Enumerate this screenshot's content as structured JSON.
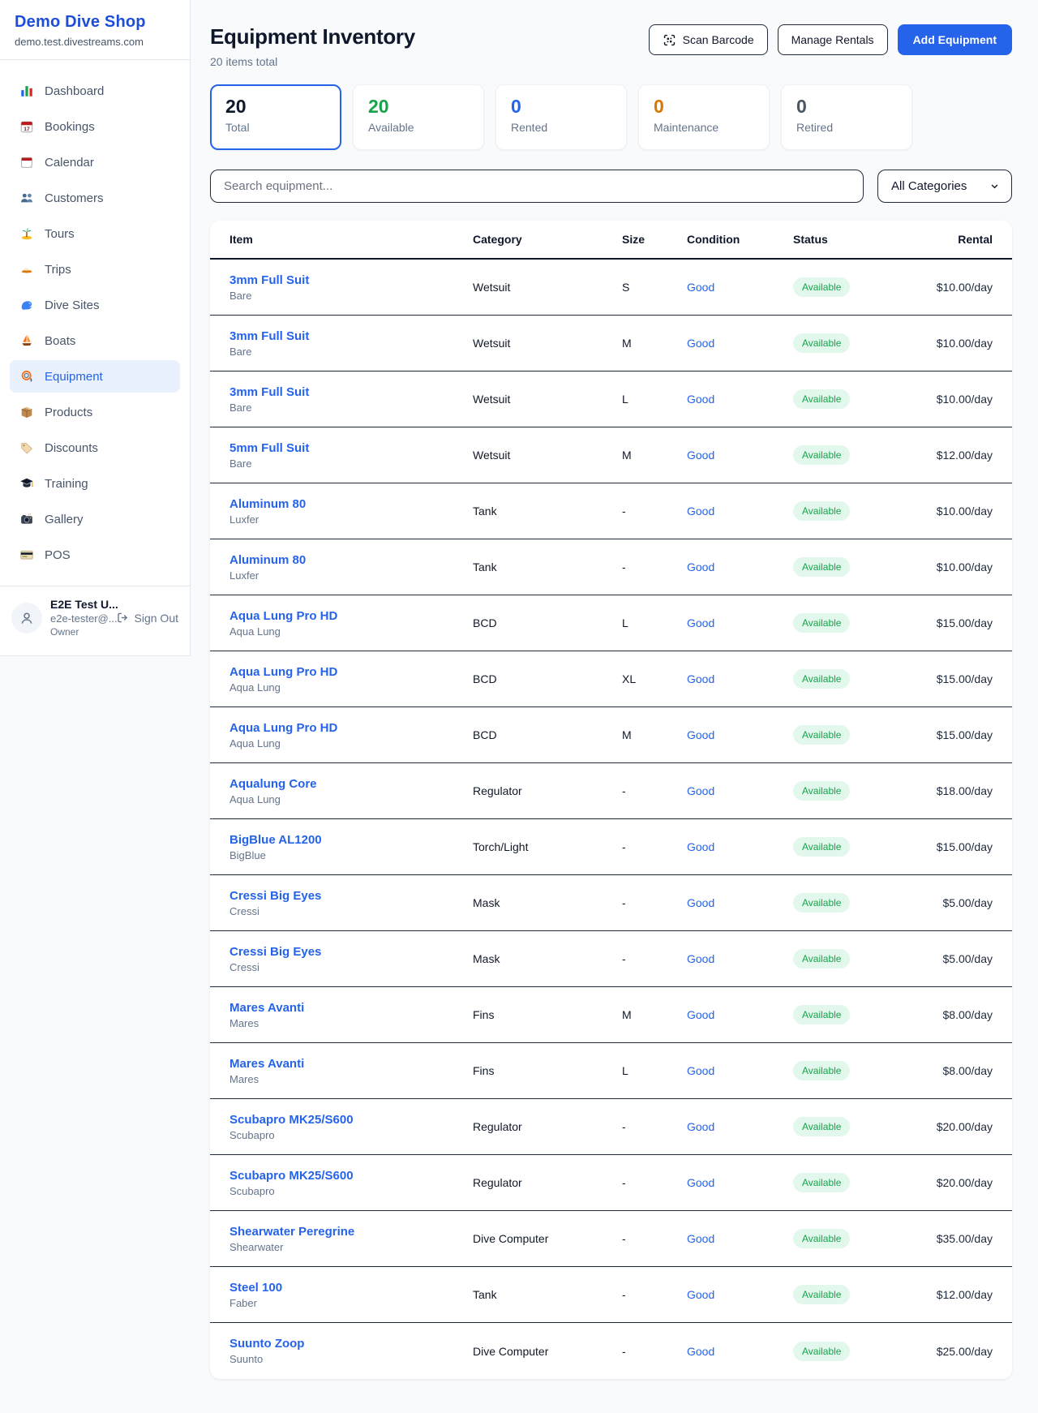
{
  "shop": {
    "name": "Demo Dive Shop",
    "domain": "demo.test.divestreams.com"
  },
  "sidebar": {
    "items": [
      {
        "label": "Dashboard",
        "icon": "bar-chart-icon",
        "active": false
      },
      {
        "label": "Bookings",
        "icon": "calendar-17-icon",
        "active": false
      },
      {
        "label": "Calendar",
        "icon": "calendar-icon",
        "active": false
      },
      {
        "label": "Customers",
        "icon": "people-icon",
        "active": false
      },
      {
        "label": "Tours",
        "icon": "palm-island-icon",
        "active": false
      },
      {
        "label": "Trips",
        "icon": "speedboat-icon",
        "active": false
      },
      {
        "label": "Dive Sites",
        "icon": "wave-icon",
        "active": false
      },
      {
        "label": "Boats",
        "icon": "sailboat-icon",
        "active": false
      },
      {
        "label": "Equipment",
        "icon": "diving-mask-icon",
        "active": true
      },
      {
        "label": "Products",
        "icon": "package-icon",
        "active": false
      },
      {
        "label": "Discounts",
        "icon": "tag-icon",
        "active": false
      },
      {
        "label": "Training",
        "icon": "graduation-cap-icon",
        "active": false
      },
      {
        "label": "Gallery",
        "icon": "camera-icon",
        "active": false
      },
      {
        "label": "POS",
        "icon": "credit-card-icon",
        "active": false
      }
    ],
    "user": {
      "name": "E2E Test U...",
      "email": "e2e-tester@...",
      "role": "Owner",
      "signout_label": "Sign Out"
    }
  },
  "header": {
    "title": "Equipment Inventory",
    "subtitle": "20 items total",
    "scan_label": "Scan Barcode",
    "manage_label": "Manage Rentals",
    "add_label": "Add Equipment"
  },
  "stats": [
    {
      "value": "20",
      "label": "Total",
      "color": "#0f172a",
      "selected": true
    },
    {
      "value": "20",
      "label": "Available",
      "color": "#16a34a",
      "selected": false
    },
    {
      "value": "0",
      "label": "Rented",
      "color": "#2563eb",
      "selected": false
    },
    {
      "value": "0",
      "label": "Maintenance",
      "color": "#d97706",
      "selected": false
    },
    {
      "value": "0",
      "label": "Retired",
      "color": "#4b5563",
      "selected": false
    }
  ],
  "filters": {
    "search_placeholder": "Search equipment...",
    "category_value": "All Categories"
  },
  "table": {
    "columns": [
      "Item",
      "Category",
      "Size",
      "Condition",
      "Status",
      "Rental"
    ],
    "rows": [
      {
        "name": "3mm Full Suit",
        "brand": "Bare",
        "category": "Wetsuit",
        "size": "S",
        "condition": "Good",
        "status": "Available",
        "rental": "$10.00/day"
      },
      {
        "name": "3mm Full Suit",
        "brand": "Bare",
        "category": "Wetsuit",
        "size": "M",
        "condition": "Good",
        "status": "Available",
        "rental": "$10.00/day"
      },
      {
        "name": "3mm Full Suit",
        "brand": "Bare",
        "category": "Wetsuit",
        "size": "L",
        "condition": "Good",
        "status": "Available",
        "rental": "$10.00/day"
      },
      {
        "name": "5mm Full Suit",
        "brand": "Bare",
        "category": "Wetsuit",
        "size": "M",
        "condition": "Good",
        "status": "Available",
        "rental": "$12.00/day"
      },
      {
        "name": "Aluminum 80",
        "brand": "Luxfer",
        "category": "Tank",
        "size": "-",
        "condition": "Good",
        "status": "Available",
        "rental": "$10.00/day"
      },
      {
        "name": "Aluminum 80",
        "brand": "Luxfer",
        "category": "Tank",
        "size": "-",
        "condition": "Good",
        "status": "Available",
        "rental": "$10.00/day"
      },
      {
        "name": "Aqua Lung Pro HD",
        "brand": "Aqua Lung",
        "category": "BCD",
        "size": "L",
        "condition": "Good",
        "status": "Available",
        "rental": "$15.00/day"
      },
      {
        "name": "Aqua Lung Pro HD",
        "brand": "Aqua Lung",
        "category": "BCD",
        "size": "XL",
        "condition": "Good",
        "status": "Available",
        "rental": "$15.00/day"
      },
      {
        "name": "Aqua Lung Pro HD",
        "brand": "Aqua Lung",
        "category": "BCD",
        "size": "M",
        "condition": "Good",
        "status": "Available",
        "rental": "$15.00/day"
      },
      {
        "name": "Aqualung Core",
        "brand": "Aqua Lung",
        "category": "Regulator",
        "size": "-",
        "condition": "Good",
        "status": "Available",
        "rental": "$18.00/day"
      },
      {
        "name": "BigBlue AL1200",
        "brand": "BigBlue",
        "category": "Torch/Light",
        "size": "-",
        "condition": "Good",
        "status": "Available",
        "rental": "$15.00/day"
      },
      {
        "name": "Cressi Big Eyes",
        "brand": "Cressi",
        "category": "Mask",
        "size": "-",
        "condition": "Good",
        "status": "Available",
        "rental": "$5.00/day"
      },
      {
        "name": "Cressi Big Eyes",
        "brand": "Cressi",
        "category": "Mask",
        "size": "-",
        "condition": "Good",
        "status": "Available",
        "rental": "$5.00/day"
      },
      {
        "name": "Mares Avanti",
        "brand": "Mares",
        "category": "Fins",
        "size": "M",
        "condition": "Good",
        "status": "Available",
        "rental": "$8.00/day"
      },
      {
        "name": "Mares Avanti",
        "brand": "Mares",
        "category": "Fins",
        "size": "L",
        "condition": "Good",
        "status": "Available",
        "rental": "$8.00/day"
      },
      {
        "name": "Scubapro MK25/S600",
        "brand": "Scubapro",
        "category": "Regulator",
        "size": "-",
        "condition": "Good",
        "status": "Available",
        "rental": "$20.00/day"
      },
      {
        "name": "Scubapro MK25/S600",
        "brand": "Scubapro",
        "category": "Regulator",
        "size": "-",
        "condition": "Good",
        "status": "Available",
        "rental": "$20.00/day"
      },
      {
        "name": "Shearwater Peregrine",
        "brand": "Shearwater",
        "category": "Dive Computer",
        "size": "-",
        "condition": "Good",
        "status": "Available",
        "rental": "$35.00/day"
      },
      {
        "name": "Steel 100",
        "brand": "Faber",
        "category": "Tank",
        "size": "-",
        "condition": "Good",
        "status": "Available",
        "rental": "$12.00/day"
      },
      {
        "name": "Suunto Zoop",
        "brand": "Suunto",
        "category": "Dive Computer",
        "size": "-",
        "condition": "Good",
        "status": "Available",
        "rental": "$25.00/day"
      }
    ]
  }
}
